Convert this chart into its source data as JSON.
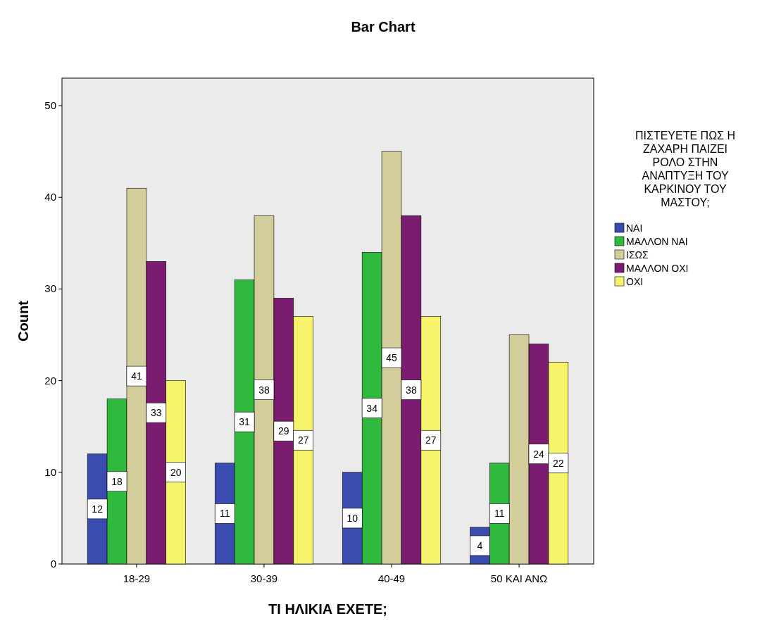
{
  "chart_data": {
    "type": "bar",
    "title": "Bar Chart",
    "xlabel": "ΤΙ ΗΛΙΚΙΑ ΕΧΕΤΕ;",
    "ylabel": "Count",
    "legend_title": "ΠΙΣΤΕΥΕΤΕ ΠΩΣ Η ΖΑΧΑΡΗ ΠΑΙΖΕΙ ΡΟΛΟ ΣΤΗΝ ΑΝΑΠΤΥΞΗ ΤΟΥ ΚΑΡΚΙΝΟΥ ΤΟΥ ΜΑΣΤΟΥ;",
    "categories": [
      "18-29",
      "30-39",
      "40-49",
      "50 ΚΑΙ ΑΝΩ"
    ],
    "series": [
      {
        "name": "ΝΑΙ",
        "color": "#3a4cb0",
        "values": [
          12,
          11,
          10,
          4
        ],
        "value_labels": [
          "12",
          "11",
          "10",
          "4"
        ]
      },
      {
        "name": "ΜΑΛΛΟΝ ΝΑΙ",
        "color": "#2fba3e",
        "values": [
          18,
          31,
          34,
          11
        ],
        "value_labels": [
          "18",
          "31",
          "34",
          "11"
        ]
      },
      {
        "name": "ΙΣΩΣ",
        "color": "#d3cd9b",
        "values": [
          41,
          38,
          45,
          25
        ],
        "value_labels": [
          "41",
          "38",
          "45",
          null
        ]
      },
      {
        "name": "ΜΑΛΛΟΝ ΟΧΙ",
        "color": "#7b1c70",
        "values": [
          33,
          29,
          38,
          24
        ],
        "value_labels": [
          "33",
          "29",
          "38",
          "24"
        ]
      },
      {
        "name": "ΟΧΙ",
        "color": "#f7f36b",
        "values": [
          20,
          27,
          27,
          22
        ],
        "value_labels": [
          "20",
          "27",
          "27",
          "22"
        ]
      }
    ],
    "ylim": [
      0,
      53
    ],
    "yticks": [
      0,
      10,
      20,
      30,
      40,
      50
    ],
    "grid": false,
    "legend": "right"
  }
}
